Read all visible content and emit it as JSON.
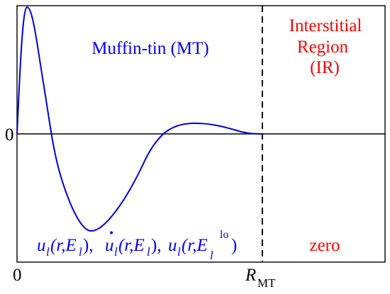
{
  "labels": {
    "mt_region": "Muffin-tin (MT)",
    "ir_line1": "Interstitial",
    "ir_line2": "Region",
    "ir_line3": "(IR)",
    "zero_label": "zero",
    "y_zero": "0",
    "x_zero": "0",
    "r_mt_main": "R",
    "r_mt_sub": "MT"
  },
  "basis_functions": {
    "f1_u": "u",
    "f1_l": "l",
    "f1_args": "(r,E",
    "f1_l2": "l",
    "f1_close": "),",
    "f2_u": "u",
    "f2_dot": "·",
    "f2_l": "l",
    "f2_args": "(r,E",
    "f2_l2": "l",
    "f2_close": "),",
    "f3_u": "u",
    "f3_l": "l",
    "f3_args": "(r,E",
    "f3_l2": "l",
    "f3_sup": "lo",
    "f3_close": ")"
  },
  "colors": {
    "mt_text": "#0000ff",
    "ir_text": "#ff0000",
    "curve": "#0000dd",
    "axes": "#000000"
  }
}
